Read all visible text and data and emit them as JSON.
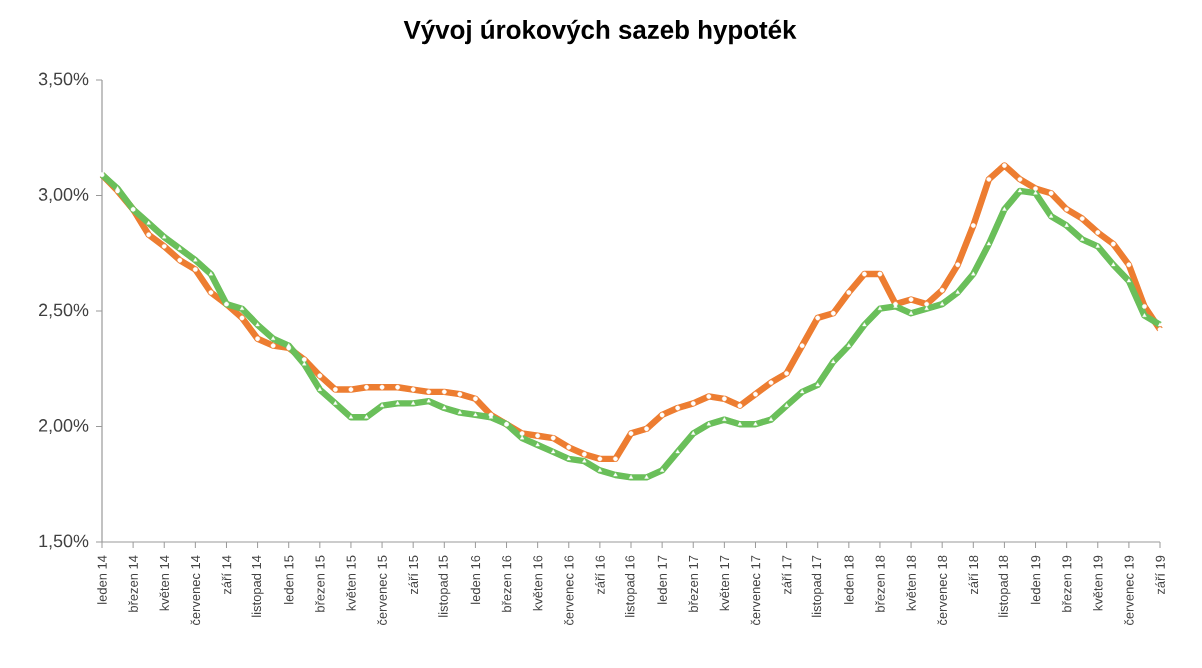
{
  "chart_data": {
    "type": "line",
    "title": "Vývoj úrokových sazeb hypoték",
    "categories": [
      "leden 14",
      null,
      "březen 14",
      null,
      "květen 14",
      null,
      "červenec 14",
      null,
      "září 14",
      null,
      "listopad 14",
      null,
      "leden 15",
      null,
      "březen 15",
      null,
      "květen 15",
      null,
      "červenec 15",
      null,
      "září 15",
      null,
      "listopad 15",
      null,
      "leden 16",
      null,
      "březen 16",
      null,
      "květen 16",
      null,
      "červenec 16",
      null,
      "září 16",
      null,
      "listopad 16",
      null,
      "leden 17",
      null,
      "březen 17",
      null,
      "květen 17",
      null,
      "červenec 17",
      null,
      "září 17",
      null,
      "listopad 17",
      null,
      "leden 18",
      null,
      "březen 18",
      null,
      "květen 18",
      null,
      "červenec 18",
      null,
      "září 18",
      null,
      "listopad 18",
      null,
      "leden 19",
      null,
      "březen 19",
      null,
      "květen 19",
      null,
      "červenec 19",
      null,
      "září 19"
    ],
    "series": [
      {
        "color": "#ed7d31",
        "marker": "circle",
        "values": [
          3.09,
          3.02,
          2.94,
          2.83,
          2.78,
          2.72,
          2.68,
          2.58,
          2.53,
          2.47,
          2.38,
          2.35,
          2.34,
          2.29,
          2.22,
          2.16,
          2.16,
          2.17,
          2.17,
          2.17,
          2.16,
          2.15,
          2.15,
          2.14,
          2.12,
          2.05,
          2.01,
          1.97,
          1.96,
          1.95,
          1.91,
          1.88,
          1.86,
          1.86,
          1.97,
          1.99,
          2.05,
          2.08,
          2.1,
          2.13,
          2.12,
          2.09,
          2.14,
          2.19,
          2.23,
          2.35,
          2.47,
          2.49,
          2.58,
          2.66,
          2.66,
          2.53,
          2.55,
          2.53,
          2.59,
          2.7,
          2.87,
          3.07,
          3.13,
          3.07,
          3.03,
          3.01,
          2.94,
          2.9,
          2.84,
          2.79,
          2.7,
          2.52,
          2.42
        ]
      },
      {
        "color": "#6abf5a",
        "marker": "triangle",
        "values": [
          3.09,
          3.03,
          2.94,
          2.88,
          2.82,
          2.77,
          2.72,
          2.66,
          2.53,
          2.51,
          2.44,
          2.38,
          2.35,
          2.27,
          2.16,
          2.1,
          2.04,
          2.04,
          2.09,
          2.1,
          2.1,
          2.11,
          2.08,
          2.06,
          2.05,
          2.04,
          2.01,
          1.95,
          1.92,
          1.89,
          1.86,
          1.85,
          1.81,
          1.79,
          1.78,
          1.78,
          1.81,
          1.89,
          1.97,
          2.01,
          2.03,
          2.01,
          2.01,
          2.03,
          2.09,
          2.15,
          2.18,
          2.28,
          2.35,
          2.44,
          2.51,
          2.52,
          2.49,
          2.51,
          2.53,
          2.58,
          2.66,
          2.79,
          2.94,
          3.02,
          3.01,
          2.91,
          2.87,
          2.81,
          2.78,
          2.7,
          2.63,
          2.48,
          2.44
        ]
      }
    ],
    "ylim": [
      1.5,
      3.5
    ],
    "yticks": [
      {
        "value": 1.5,
        "label": "1,50%"
      },
      {
        "value": 2.0,
        "label": "2,00%"
      },
      {
        "value": 2.5,
        "label": "2,50%"
      },
      {
        "value": 3.0,
        "label": "3,00%"
      },
      {
        "value": 3.5,
        "label": "3,50%"
      }
    ],
    "line_style": "solid"
  }
}
